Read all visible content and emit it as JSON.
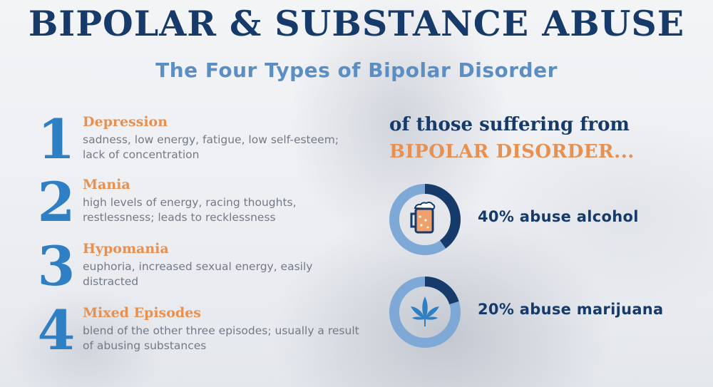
{
  "header": {
    "title": "BIPOLAR & SUBSTANCE ABUSE",
    "subtitle": "The Four Types of Bipolar Disorder"
  },
  "types": [
    {
      "number": "1",
      "name": "Depression",
      "description": "sadness, low energy, fatigue, low self-esteem; lack of concentration"
    },
    {
      "number": "2",
      "name": "Mania",
      "description": "high levels of energy, racing thoughts, restlessness; leads to recklessness"
    },
    {
      "number": "3",
      "name": "Hypomania",
      "description": "euphoria, increased sexual energy, easily distracted"
    },
    {
      "number": "4",
      "name": "Mixed Episodes",
      "description": "blend of the other three episodes; usually a result of abusing substances"
    }
  ],
  "stats_intro": {
    "line1": "of those suffering from",
    "line2": "BIPOLAR DISORDER..."
  },
  "stats": [
    {
      "label": "40% abuse alcohol",
      "fraction": 0.4,
      "icon": "beer-mug-icon"
    },
    {
      "label": "20% abuse marijuana",
      "fraction": 0.2,
      "icon": "cannabis-leaf-icon"
    }
  ],
  "colors": {
    "navy": "#163a6a",
    "blue": "#2f7fc4",
    "light_blue": "#5b8fc4",
    "orange": "#e8904f",
    "ring_light": "#7ea8d6",
    "ring_dark": "#163a6a",
    "gray_text": "#737a86"
  }
}
